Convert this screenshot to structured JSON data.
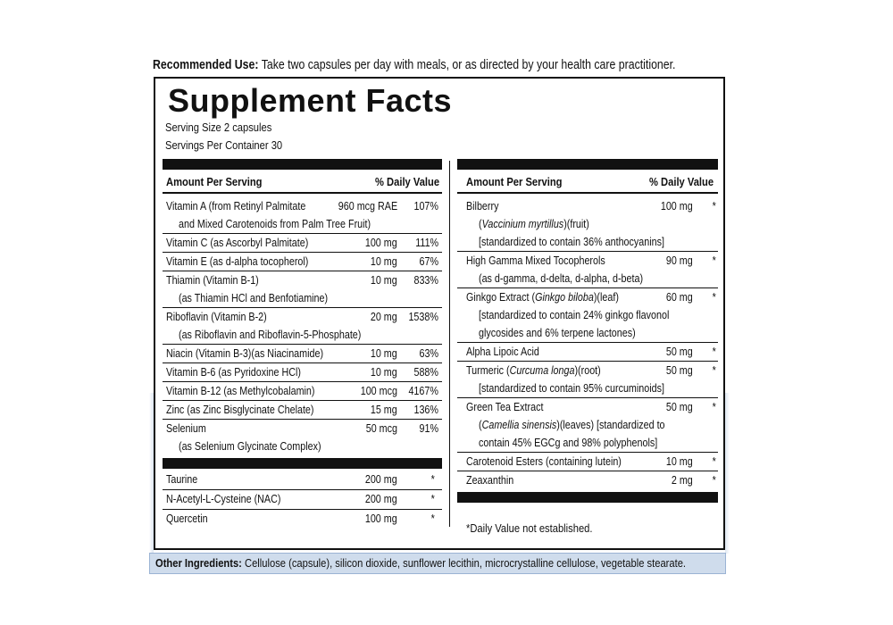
{
  "recommended": {
    "label": "Recommended Use:",
    "text": " Take two capsules per day with meals, or as directed by your health care practitioner."
  },
  "panel": {
    "title": "Supplement Facts",
    "serving_size": "Serving Size 2 capsules",
    "servings_per_container": "Servings Per Container 30",
    "left_header": {
      "amount": "Amount Per Serving",
      "dv": "% Daily Value"
    },
    "right_header": {
      "amount": "Amount Per Serving",
      "dv": "% Daily Value"
    },
    "left_rows": [
      {
        "name": "Vitamin A (from Retinyl Palmitate",
        "sub": "and Mixed Carotenoids from Palm Tree Fruit)",
        "amount": "960 mcg RAE",
        "dv": "107%"
      },
      {
        "name": "Vitamin C (as Ascorbyl Palmitate)",
        "amount": "100 mg",
        "dv": "111%"
      },
      {
        "name": "Vitamin E (as d-alpha tocopherol)",
        "amount": "10 mg",
        "dv": "67%"
      },
      {
        "name": "Thiamin (Vitamin B-1)",
        "sub": "(as Thiamin HCl and Benfotiamine)",
        "amount": "10 mg",
        "dv": "833%"
      },
      {
        "name": "Riboflavin (Vitamin B-2)",
        "sub": "(as Riboflavin and Riboflavin-5-Phosphate)",
        "amount": "20 mg",
        "dv": "1538%"
      },
      {
        "name": "Niacin (Vitamin B-3)(as Niacinamide)",
        "amount": "10 mg",
        "dv": "63%"
      },
      {
        "name": "Vitamin B-6 (as Pyridoxine HCl)",
        "amount": "10 mg",
        "dv": "588%"
      },
      {
        "name": "Vitamin B-12 (as Methylcobalamin)",
        "amount": "100 mcg",
        "dv": "4167%"
      },
      {
        "name": "Zinc (as Zinc Bisglycinate Chelate)",
        "amount": "15 mg",
        "dv": "136%"
      },
      {
        "name": "Selenium",
        "sub": "(as Selenium Glycinate Complex)",
        "amount": "50 mcg",
        "dv": "91%"
      }
    ],
    "left_rows_2": [
      {
        "name": "Taurine",
        "amount": "200 mg",
        "dv": "*"
      },
      {
        "name": "N-Acetyl-L-Cysteine (NAC)",
        "amount": "200 mg",
        "dv": "*"
      },
      {
        "name": "Quercetin",
        "amount": "100 mg",
        "dv": "*"
      }
    ],
    "right_rows": [
      {
        "name": "Bilberry",
        "sub1_pre": "(",
        "sub1_it": "Vaccinium myrtillus",
        "sub1_post": ")(fruit)",
        "sub2": "[standardized to contain 36% anthocyanins]",
        "amount": "100 mg",
        "dv": "*"
      },
      {
        "name": "High Gamma Mixed Tocopherols",
        "sub2": "(as d-gamma, d-delta, d-alpha, d-beta)",
        "amount": "90 mg",
        "dv": "*"
      },
      {
        "name_pre": "Ginkgo Extract (",
        "name_it": "Ginkgo biloba",
        "name_post": ")(leaf)",
        "sub2": "[standardized to contain 24% ginkgo flavonol",
        "sub3": "glycosides and 6% terpene lactones)",
        "amount": "60 mg",
        "dv": "*"
      },
      {
        "name": "Alpha Lipoic Acid",
        "amount": "50 mg",
        "dv": "*"
      },
      {
        "name_pre": "Turmeric (",
        "name_it": "Curcuma longa",
        "name_post": ")(root)",
        "sub2": "[standardized to contain 95% curcuminoids]",
        "amount": "50 mg",
        "dv": "*"
      },
      {
        "name": "Green Tea Extract",
        "sub1_pre": "(",
        "sub1_it": "Camellia sinensis",
        "sub1_post": ")(leaves) [standardized to",
        "sub2": "contain 45% EGCg and 98% polyphenols]",
        "amount": "50 mg",
        "dv": "*"
      },
      {
        "name": "Carotenoid Esters (containing lutein)",
        "amount": "10 mg",
        "dv": "*"
      },
      {
        "name": "Zeaxanthin",
        "amount": "2 mg",
        "dv": "*"
      }
    ],
    "footnote": "*Daily Value not established."
  },
  "other_ingredients": {
    "label": "Other Ingredients:",
    "text": " Cellulose (capsule), silicon dioxide, sunflower lecithin, microcrystalline cellulose, vegetable stearate."
  }
}
